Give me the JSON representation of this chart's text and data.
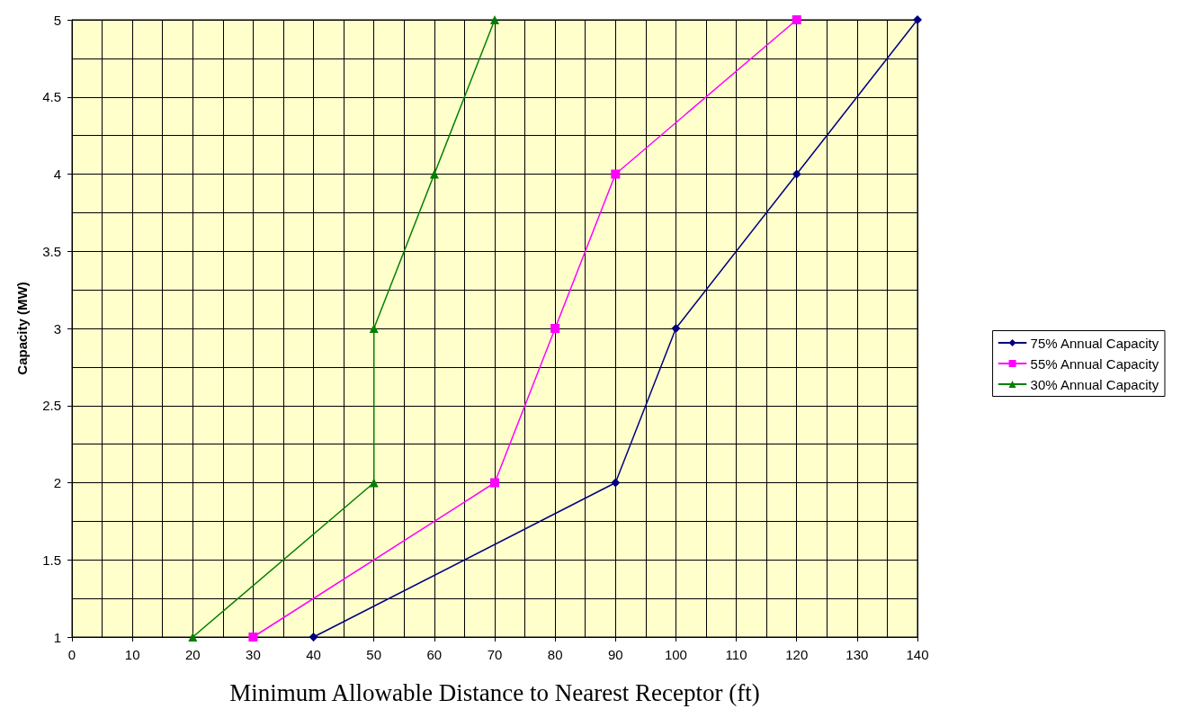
{
  "chart_data": {
    "type": "line",
    "xlabel": "Minimum Allowable Distance to Nearest Receptor (ft)",
    "ylabel": "Capacity (MW)",
    "xlim": [
      0,
      140
    ],
    "xticks": [
      0,
      10,
      20,
      30,
      40,
      50,
      60,
      70,
      80,
      90,
      100,
      110,
      120,
      130,
      140
    ],
    "ylim": [
      1,
      5
    ],
    "yticks": [
      1,
      1.5,
      2,
      2.5,
      3,
      3.5,
      4,
      4.5,
      5
    ],
    "grid": true,
    "legend": "right",
    "line_style": "solid",
    "series": [
      {
        "name": "75% Annual Capacity",
        "color": "#000080",
        "marker": "diamond",
        "x": [
          40,
          90,
          100,
          120,
          140
        ],
        "values": [
          1,
          2,
          3,
          4,
          5
        ]
      },
      {
        "name": "55% Annual Capacity",
        "color": "#ff00ff",
        "marker": "square",
        "x": [
          30,
          70,
          80,
          90,
          120
        ],
        "values": [
          1,
          2,
          3,
          4,
          5
        ]
      },
      {
        "name": "30% Annual Capacity",
        "color": "#008000",
        "marker": "triangle",
        "x": [
          20,
          50,
          50,
          60,
          70
        ],
        "values": [
          1,
          2,
          3,
          4,
          5
        ]
      }
    ]
  }
}
